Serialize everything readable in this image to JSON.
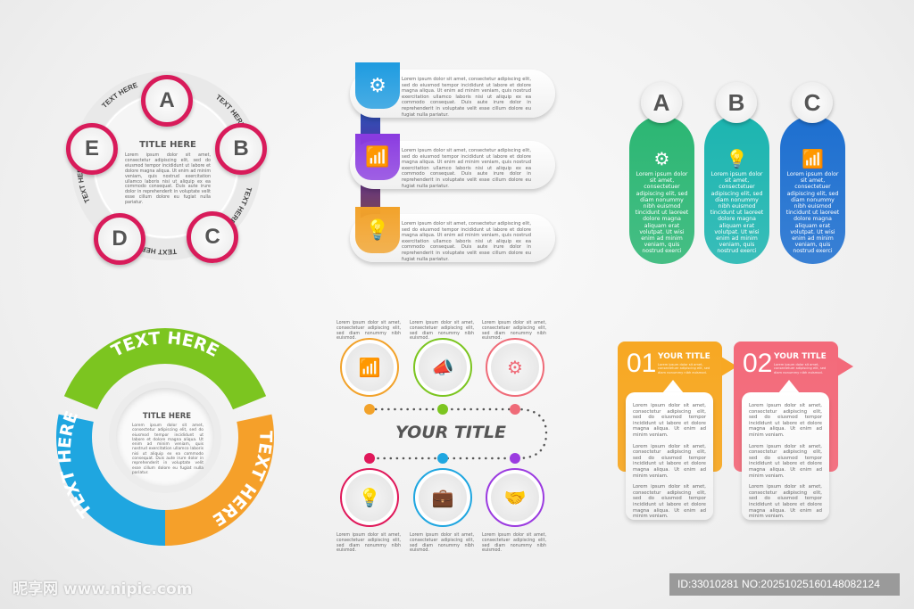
{
  "lorem_long": "Lorem ipsum dolor sit amet, consectetur adipiscing elit, sed do eiusmod tempor incididunt ut labore et dolore magna aliqua. Ut enim ad minim veniam, quis nostrud exercitation ullamco laboris nisi ut aliquip ex ea commodo consequat. Duis aute irure dolor in reprehenderit in voluptate velit esse cillum dolore eu fugiat nulla pariatur.",
  "pentagon": {
    "title": "TITLE HERE",
    "body": "Lorem ipsum dolor sit amet, consectetur adipiscing elit, sed do eiusmod tempor incididunt ut labore et dolore magna aliqua. Ut enim ad minim veniam, quis nostrud exercitation ullamco laboris nisi ut aliquip ex ea commodo consequat. Duis aute irure dolor in reprehenderit in voluptate velit esse cillum dolore eu fugiat nulla pariatur.",
    "nodes": [
      "A",
      "B",
      "C",
      "D",
      "E"
    ],
    "ring_labels": [
      "TEXT HERE",
      "TEXT HERE",
      "TEXT HERE",
      "TEXT HERE",
      "TEXT HERE"
    ],
    "accent": "#d81b5a"
  },
  "bars": {
    "items": [
      {
        "icon": "gear-icon",
        "color": "#1e9be0",
        "text": "Lorem ipsum dolor sit amet, consectetur adipiscing elit, sed do eiusmod tempor incididunt ut labore et dolore magna aliqua. Ut enim ad minim veniam, quis nostrud exercitation ullamco laboris nisi ut aliquip ex ea commodo consequat. Duis aute irure dolor in reprehenderit in voluptate velit esse cillum dolore eu fugiat nulla pariatur."
      },
      {
        "icon": "growth-chart-icon",
        "color": "#8a3be0",
        "text": "Lorem ipsum dolor sit amet, consectetur adipiscing elit, sed do eiusmod tempor incididunt ut labore et dolore magna aliqua. Ut enim ad minim veniam, quis nostrud exercitation ullamco laboris nisi ut aliquip ex ea commodo consequat. Duis aute irure dolor in reprehenderit in voluptate velit esse cillum dolore eu fugiat nulla pariatur."
      },
      {
        "icon": "lightbulb-icon",
        "color": "#f2a22a",
        "text": "Lorem ipsum dolor sit amet, consectetur adipiscing elit, sed do eiusmod tempor incididunt ut labore et dolore magna aliqua. Ut enim ad minim veniam, quis nostrud exercitation ullamco laboris nisi ut aliquip ex ea commodo consequat. Duis aute irure dolor in reprehenderit in voluptate velit esse cillum dolore eu fugiat nulla pariatur."
      }
    ]
  },
  "pills": {
    "items": [
      {
        "letter": "A",
        "icon": "gear-icon",
        "color": "#2bb673",
        "text": "Lorem ipsum dolor sit amet, consectetuer adipiscing elit, sed diam nonummy nibh euismod tincidunt ut laoreet dolore magna aliquam erat volutpat. Ut wisi enim ad minim veniam, quis nostrud exerci"
      },
      {
        "letter": "B",
        "icon": "lightbulb-icon",
        "color": "#1cb5b0",
        "text": "Lorem ipsum dolor sit amet, consectetuer adipiscing elit, sed diam nonummy nibh euismod tincidunt ut laoreet dolore magna aliquam erat volutpat. Ut wisi enim ad minim veniam, quis nostrud exerci"
      },
      {
        "letter": "C",
        "icon": "growth-chart-icon",
        "color": "#1d6fd0",
        "text": "Lorem ipsum dolor sit amet, consectetuer adipiscing elit, sed diam nonummy nibh euismod tincidunt ut laoreet dolore magna aliquam erat volutpat. Ut wisi enim ad minim veniam, quis nostrud exerci"
      }
    ]
  },
  "donut": {
    "title": "TITLE HERE",
    "body": "Lorem ipsum dolor sit amet, consectetur adipiscing elit, sed do eiusmod tempor incididunt ut labore et dolore magna aliqua. Ut enim ad minim veniam, quis nostrud exercitation ullamco laboris nisi ut aliquip ex ea commodo consequat. Duis aute irure dolor in reprehenderit in voluptate velit esse cillum dolore eu fugiat nulla pariatur.",
    "segments": [
      {
        "label": "TEXT HERE",
        "color": "#7cc520"
      },
      {
        "label": "TEXT HERE",
        "color": "#f5a02a"
      },
      {
        "label": "TEXT HERE",
        "color": "#1fa6e0"
      }
    ]
  },
  "timeline": {
    "title": "YOUR TITLE",
    "caption": "Lorem ipsum dolor sit amet, consectetuer adipiscing elit, sed diam nonummy nibh euismod.",
    "top": [
      {
        "icon": "growth-chart-icon",
        "color": "#f2a22a"
      },
      {
        "icon": "megaphone-icon",
        "color": "#7cc520"
      },
      {
        "icon": "gear-icon",
        "color": "#ef6b78"
      }
    ],
    "bottom": [
      {
        "icon": "lightbulb-icon",
        "color": "#e0185a"
      },
      {
        "icon": "briefcase-icon",
        "color": "#1fa6e0"
      },
      {
        "icon": "handshake-heart-icon",
        "color": "#9b3be0"
      }
    ]
  },
  "cards": {
    "items": [
      {
        "number": "01",
        "title": "YOUR TITLE",
        "subtitle": "Lorem ipsum dolor sit amet, consectetuer adipiscing elit, sed diam nonummy nibh euismod.",
        "color": "#f7a823",
        "paragraphs": [
          "Lorem ipsum dolor sit amet, consectetur adipiscing elit, sed do eiusmod tempor incididunt ut labore et dolore magna aliqua. Ut enim ad minim veniam.",
          "Lorem ipsum dolor sit amet, consectetur adipiscing elit, sed do eiusmod tempor incididunt ut labore et dolore magna aliqua. Ut enim ad minim veniam.",
          "Lorem ipsum dolor sit amet, consectetur adipiscing elit, sed do eiusmod tempor incididunt ut labore et dolore magna aliqua. Ut enim ad minim veniam."
        ]
      },
      {
        "number": "02",
        "title": "YOUR TITLE",
        "subtitle": "Lorem ipsum dolor sit amet, consectetuer adipiscing elit, sed diam nonummy nibh euismod.",
        "color": "#f36a7a",
        "paragraphs": [
          "Lorem ipsum dolor sit amet, consectetur adipiscing elit, sed do eiusmod tempor incididunt ut labore et dolore magna aliqua. Ut enim ad minim veniam.",
          "Lorem ipsum dolor sit amet, consectetur adipiscing elit, sed do eiusmod tempor incididunt ut labore et dolore magna aliqua. Ut enim ad minim veniam.",
          "Lorem ipsum dolor sit amet, consectetur adipiscing elit, sed do eiusmod tempor incididunt ut labore et dolore magna aliqua. Ut enim ad minim veniam."
        ]
      }
    ]
  },
  "watermark": {
    "logo_text": "昵享网 www.nipic.com",
    "id_text": "ID:33010281 NO:20251025160148082124"
  }
}
